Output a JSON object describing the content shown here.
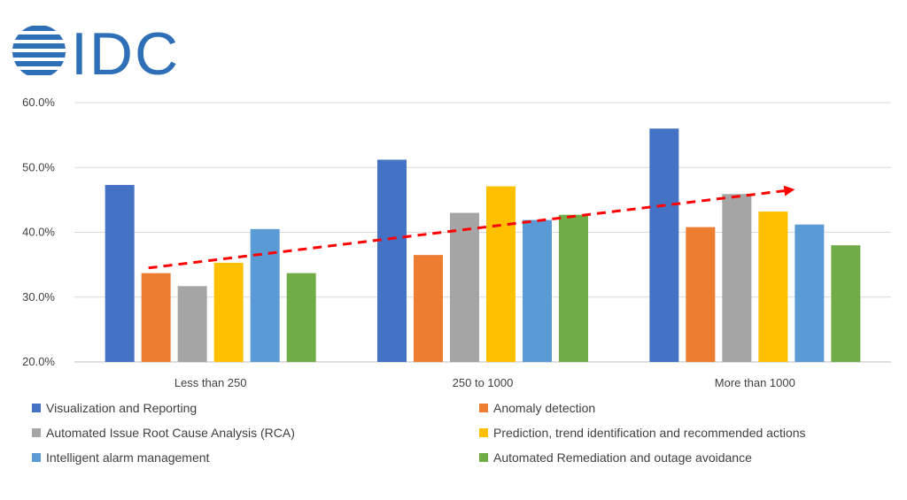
{
  "logo": {
    "text": "IDC",
    "color": "#2e6fb7"
  },
  "chart_data": {
    "type": "bar",
    "categories": [
      "Less than 250",
      "250 to 1000",
      "More than 1000"
    ],
    "series": [
      {
        "name": "Visualization and Reporting",
        "color": "#4472c4",
        "values": [
          47.3,
          51.2,
          56.0
        ]
      },
      {
        "name": "Anomaly detection",
        "color": "#ed7d31",
        "values": [
          33.7,
          36.5,
          40.8
        ]
      },
      {
        "name": "Automated Issue Root Cause Analysis (RCA)",
        "color": "#a5a5a5",
        "values": [
          31.7,
          43.0,
          45.9
        ]
      },
      {
        "name": "Prediction, trend identification and recommended actions",
        "color": "#ffc000",
        "values": [
          35.3,
          47.1,
          43.2
        ]
      },
      {
        "name": "Intelligent alarm management",
        "color": "#5b9bd5",
        "values": [
          40.5,
          41.9,
          41.2
        ]
      },
      {
        "name": "Automated Remediation and outage avoidance",
        "color": "#70ad47",
        "values": [
          33.7,
          42.7,
          38.0
        ]
      }
    ],
    "ylim": [
      20,
      60
    ],
    "yticks": [
      "20.0%",
      "30.0%",
      "40.0%",
      "50.0%",
      "60.0%"
    ],
    "grid": true,
    "legend_position": "bottom",
    "annotation": {
      "type": "trend-arrow",
      "color": "#ff0000",
      "style": "dashed"
    }
  }
}
